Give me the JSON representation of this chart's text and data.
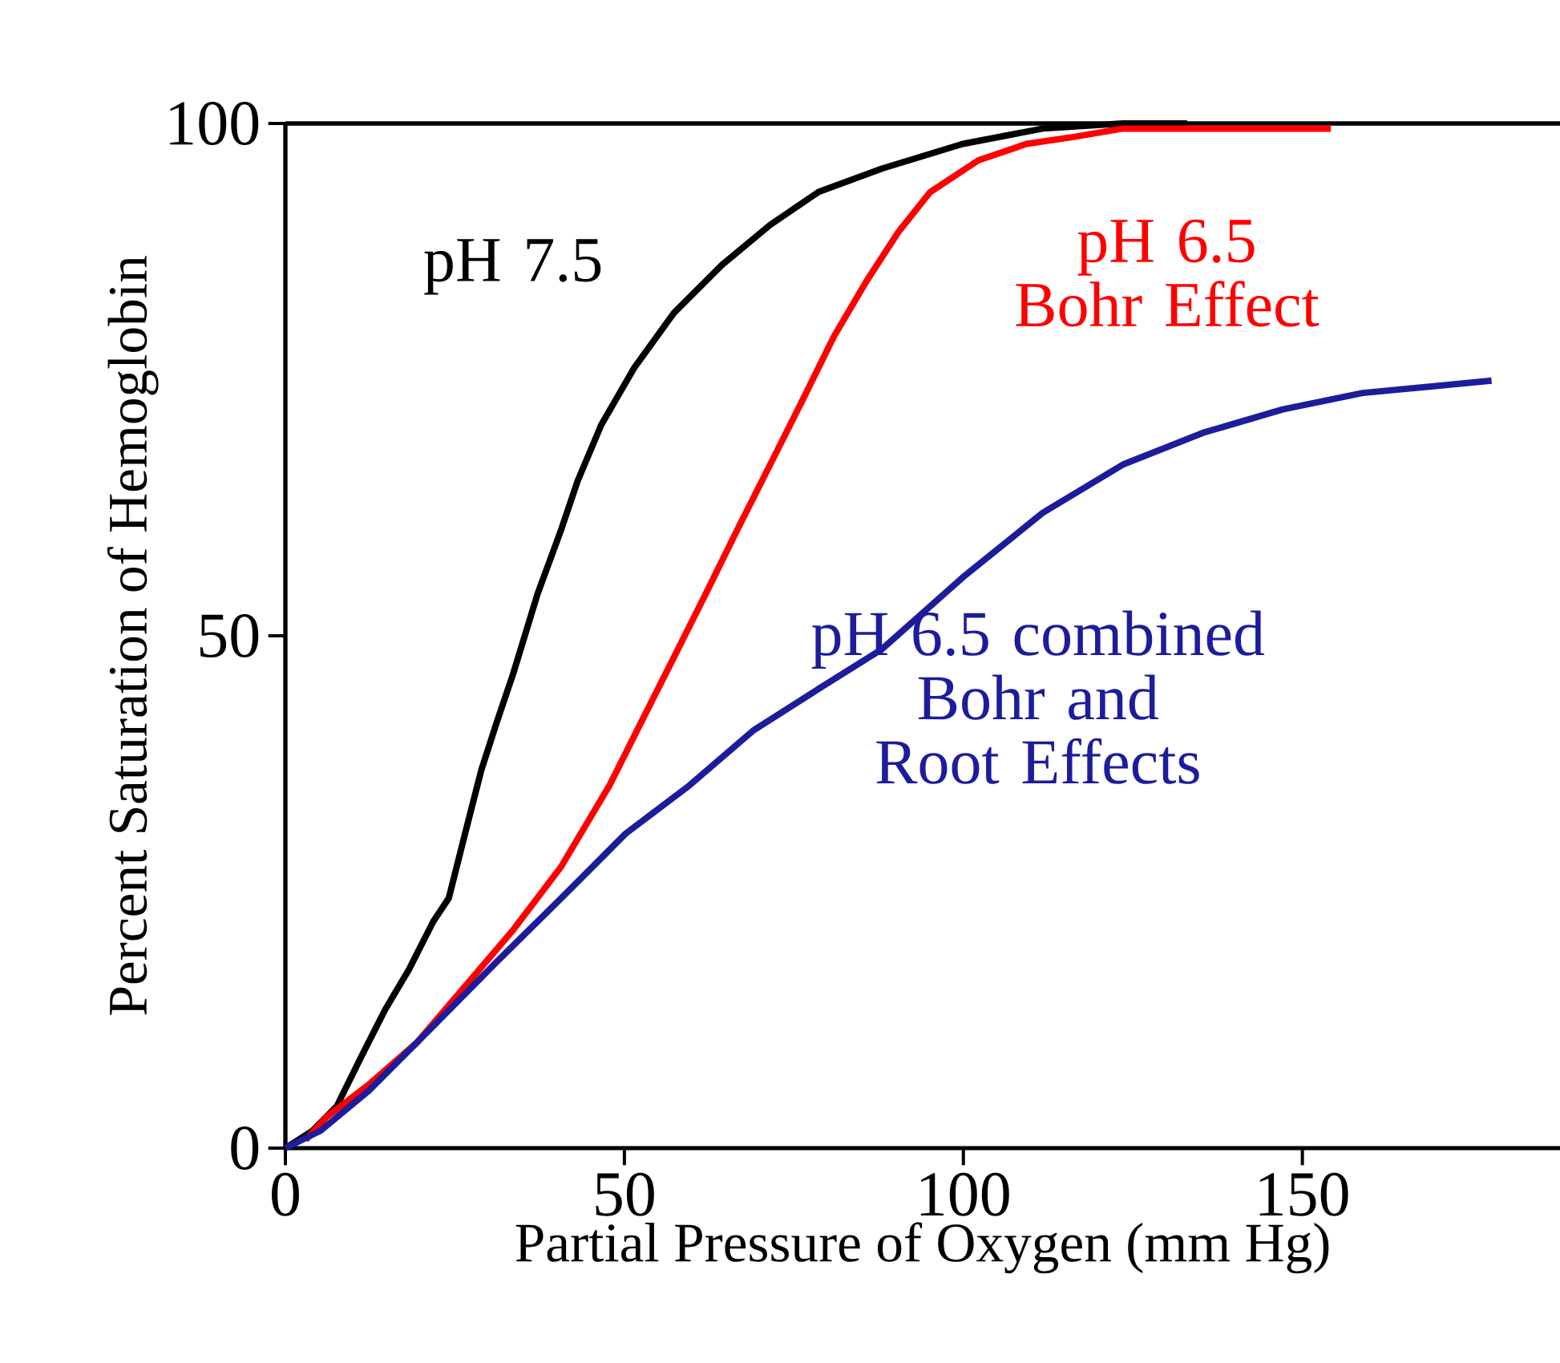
{
  "chart_data": {
    "type": "line",
    "xlabel": "Partial Pressure of Oxygen (mm Hg)",
    "ylabel": "Percent Saturation of Hemoglobin",
    "xlim": [
      0,
      188
    ],
    "ylim": [
      0,
      100
    ],
    "xticks": [
      0,
      50,
      100,
      150
    ],
    "yticks": [
      0,
      50,
      100
    ],
    "grid": false,
    "legend": false,
    "marker": "none",
    "line_style": "solid",
    "series": [
      {
        "name": "pH 7.5",
        "color": "#000000",
        "x": [
          0,
          4,
          7.6,
          11.1,
          14.7,
          18.2,
          21.8,
          24.1,
          26.5,
          28.9,
          31.2,
          33.6,
          37.2,
          40.7,
          43.1,
          46.6,
          51.4,
          57.3,
          64.4,
          71.5,
          78.6,
          88,
          99.9,
          111.7,
          123.5,
          133
        ],
        "values": [
          0,
          1.7,
          4.1,
          8.8,
          13.5,
          17.4,
          22.1,
          24.4,
          30.7,
          36.9,
          41.6,
          46.3,
          54.1,
          60.4,
          65.1,
          70.6,
          76.1,
          81.5,
          86.2,
          90.1,
          93.3,
          95.6,
          98,
          99.5,
          100,
          100
        ]
      },
      {
        "name": "pH 6.5 Bohr Effect",
        "color": "#ff0000",
        "x": [
          3,
          6,
          12.3,
          19.4,
          26.5,
          33.6,
          40.7,
          47.8,
          52.5,
          57.3,
          62,
          66.7,
          71.5,
          76.2,
          80.9,
          85.7,
          90.4,
          95.1,
          102.2,
          109.3,
          116.4,
          123.5,
          135.3,
          154.2
        ],
        "values": [
          0.8,
          3,
          6.2,
          10.3,
          15.8,
          21.3,
          27.5,
          35.4,
          41.6,
          47.9,
          54.1,
          60.4,
          66.7,
          72.9,
          79.2,
          84.6,
          89.4,
          93.3,
          96.4,
          98,
          98.7,
          99.5,
          99.5,
          99.5
        ]
      },
      {
        "name": "pH 6.5 combined Bohr and Root Effects",
        "color": "#1c1c9c",
        "x": [
          0,
          5.2,
          12.3,
          21.8,
          31.2,
          40.7,
          50.2,
          59.6,
          69.1,
          78.6,
          88,
          99.9,
          111.7,
          123.5,
          135.3,
          147.1,
          158.9,
          177.9
        ],
        "values": [
          0,
          1.7,
          5.6,
          11.9,
          18.2,
          24.4,
          30.7,
          35.4,
          40.8,
          44.8,
          48.7,
          55.7,
          62,
          66.7,
          69.8,
          72.1,
          73.7,
          74.9
        ]
      }
    ]
  }
}
